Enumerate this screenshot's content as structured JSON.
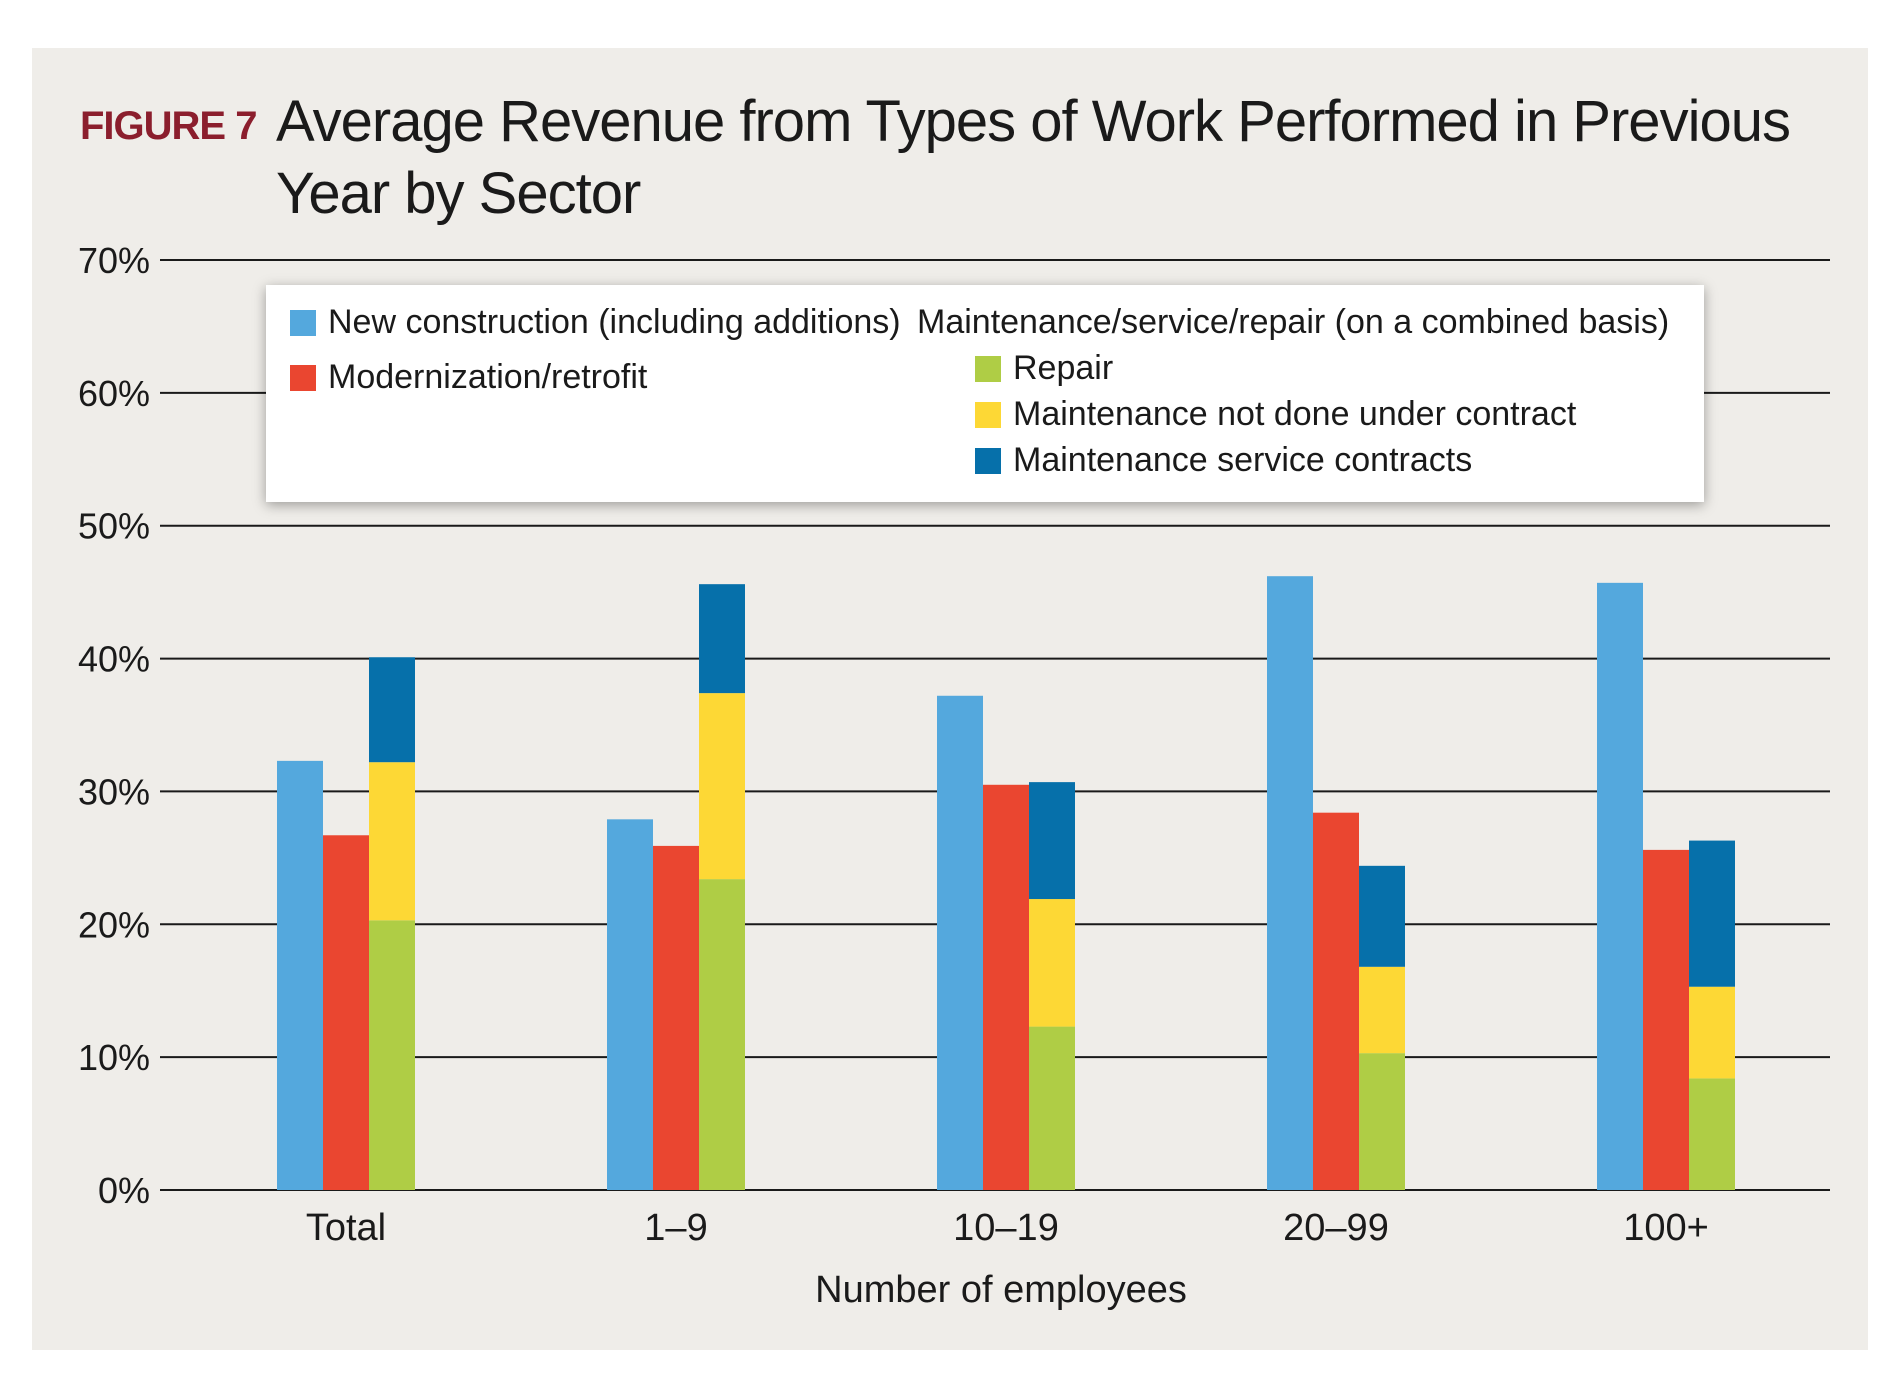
{
  "figure": {
    "label": "FIGURE 7",
    "title": "Average Revenue from Types of Work Performed in Previous Year by Sector"
  },
  "legend": {
    "group_heading": "Maintenance/service/repair (on a combined basis)",
    "entries": [
      {
        "key": "new_construction",
        "label": "New construction (including additions)",
        "color": "#54a8dd"
      },
      {
        "key": "modernization",
        "label": "Modernization/retrofit",
        "color": "#ea4630"
      },
      {
        "key": "repair",
        "label": "Repair",
        "color": "#afcd45"
      },
      {
        "key": "maintenance_no_contract",
        "label": "Maintenance not done under contract",
        "color": "#fdd835"
      },
      {
        "key": "maintenance_contracts",
        "label": "Maintenance service contracts",
        "color": "#0670aa"
      }
    ]
  },
  "chart_data": {
    "type": "bar",
    "title": "Average Revenue from Types of Work Performed in Previous Year by Sector",
    "xlabel": "Number of employees",
    "ylabel": "",
    "ylim": [
      0,
      70
    ],
    "yticks": [
      "0%",
      "10%",
      "20%",
      "30%",
      "40%",
      "50%",
      "60%",
      "70%"
    ],
    "grid": true,
    "legend_position": "top",
    "categories": [
      "Total",
      "1–9",
      "10–19",
      "20–99",
      "100+"
    ],
    "series": [
      {
        "name": "New construction (including additions)",
        "values": [
          32.3,
          27.9,
          37.2,
          46.2,
          45.7
        ]
      },
      {
        "name": "Modernization/retrofit",
        "values": [
          26.7,
          25.9,
          30.5,
          28.4,
          25.6
        ]
      },
      {
        "name": "Repair",
        "stack": "Maintenance/service/repair (on a combined basis)",
        "values": [
          20.3,
          23.4,
          12.3,
          10.3,
          8.4
        ]
      },
      {
        "name": "Maintenance not done under contract",
        "stack": "Maintenance/service/repair (on a combined basis)",
        "values": [
          11.9,
          14.0,
          9.6,
          6.5,
          6.9
        ]
      },
      {
        "name": "Maintenance service contracts",
        "stack": "Maintenance/service/repair (on a combined basis)",
        "values": [
          7.9,
          8.2,
          8.8,
          7.6,
          11.0
        ]
      }
    ]
  }
}
